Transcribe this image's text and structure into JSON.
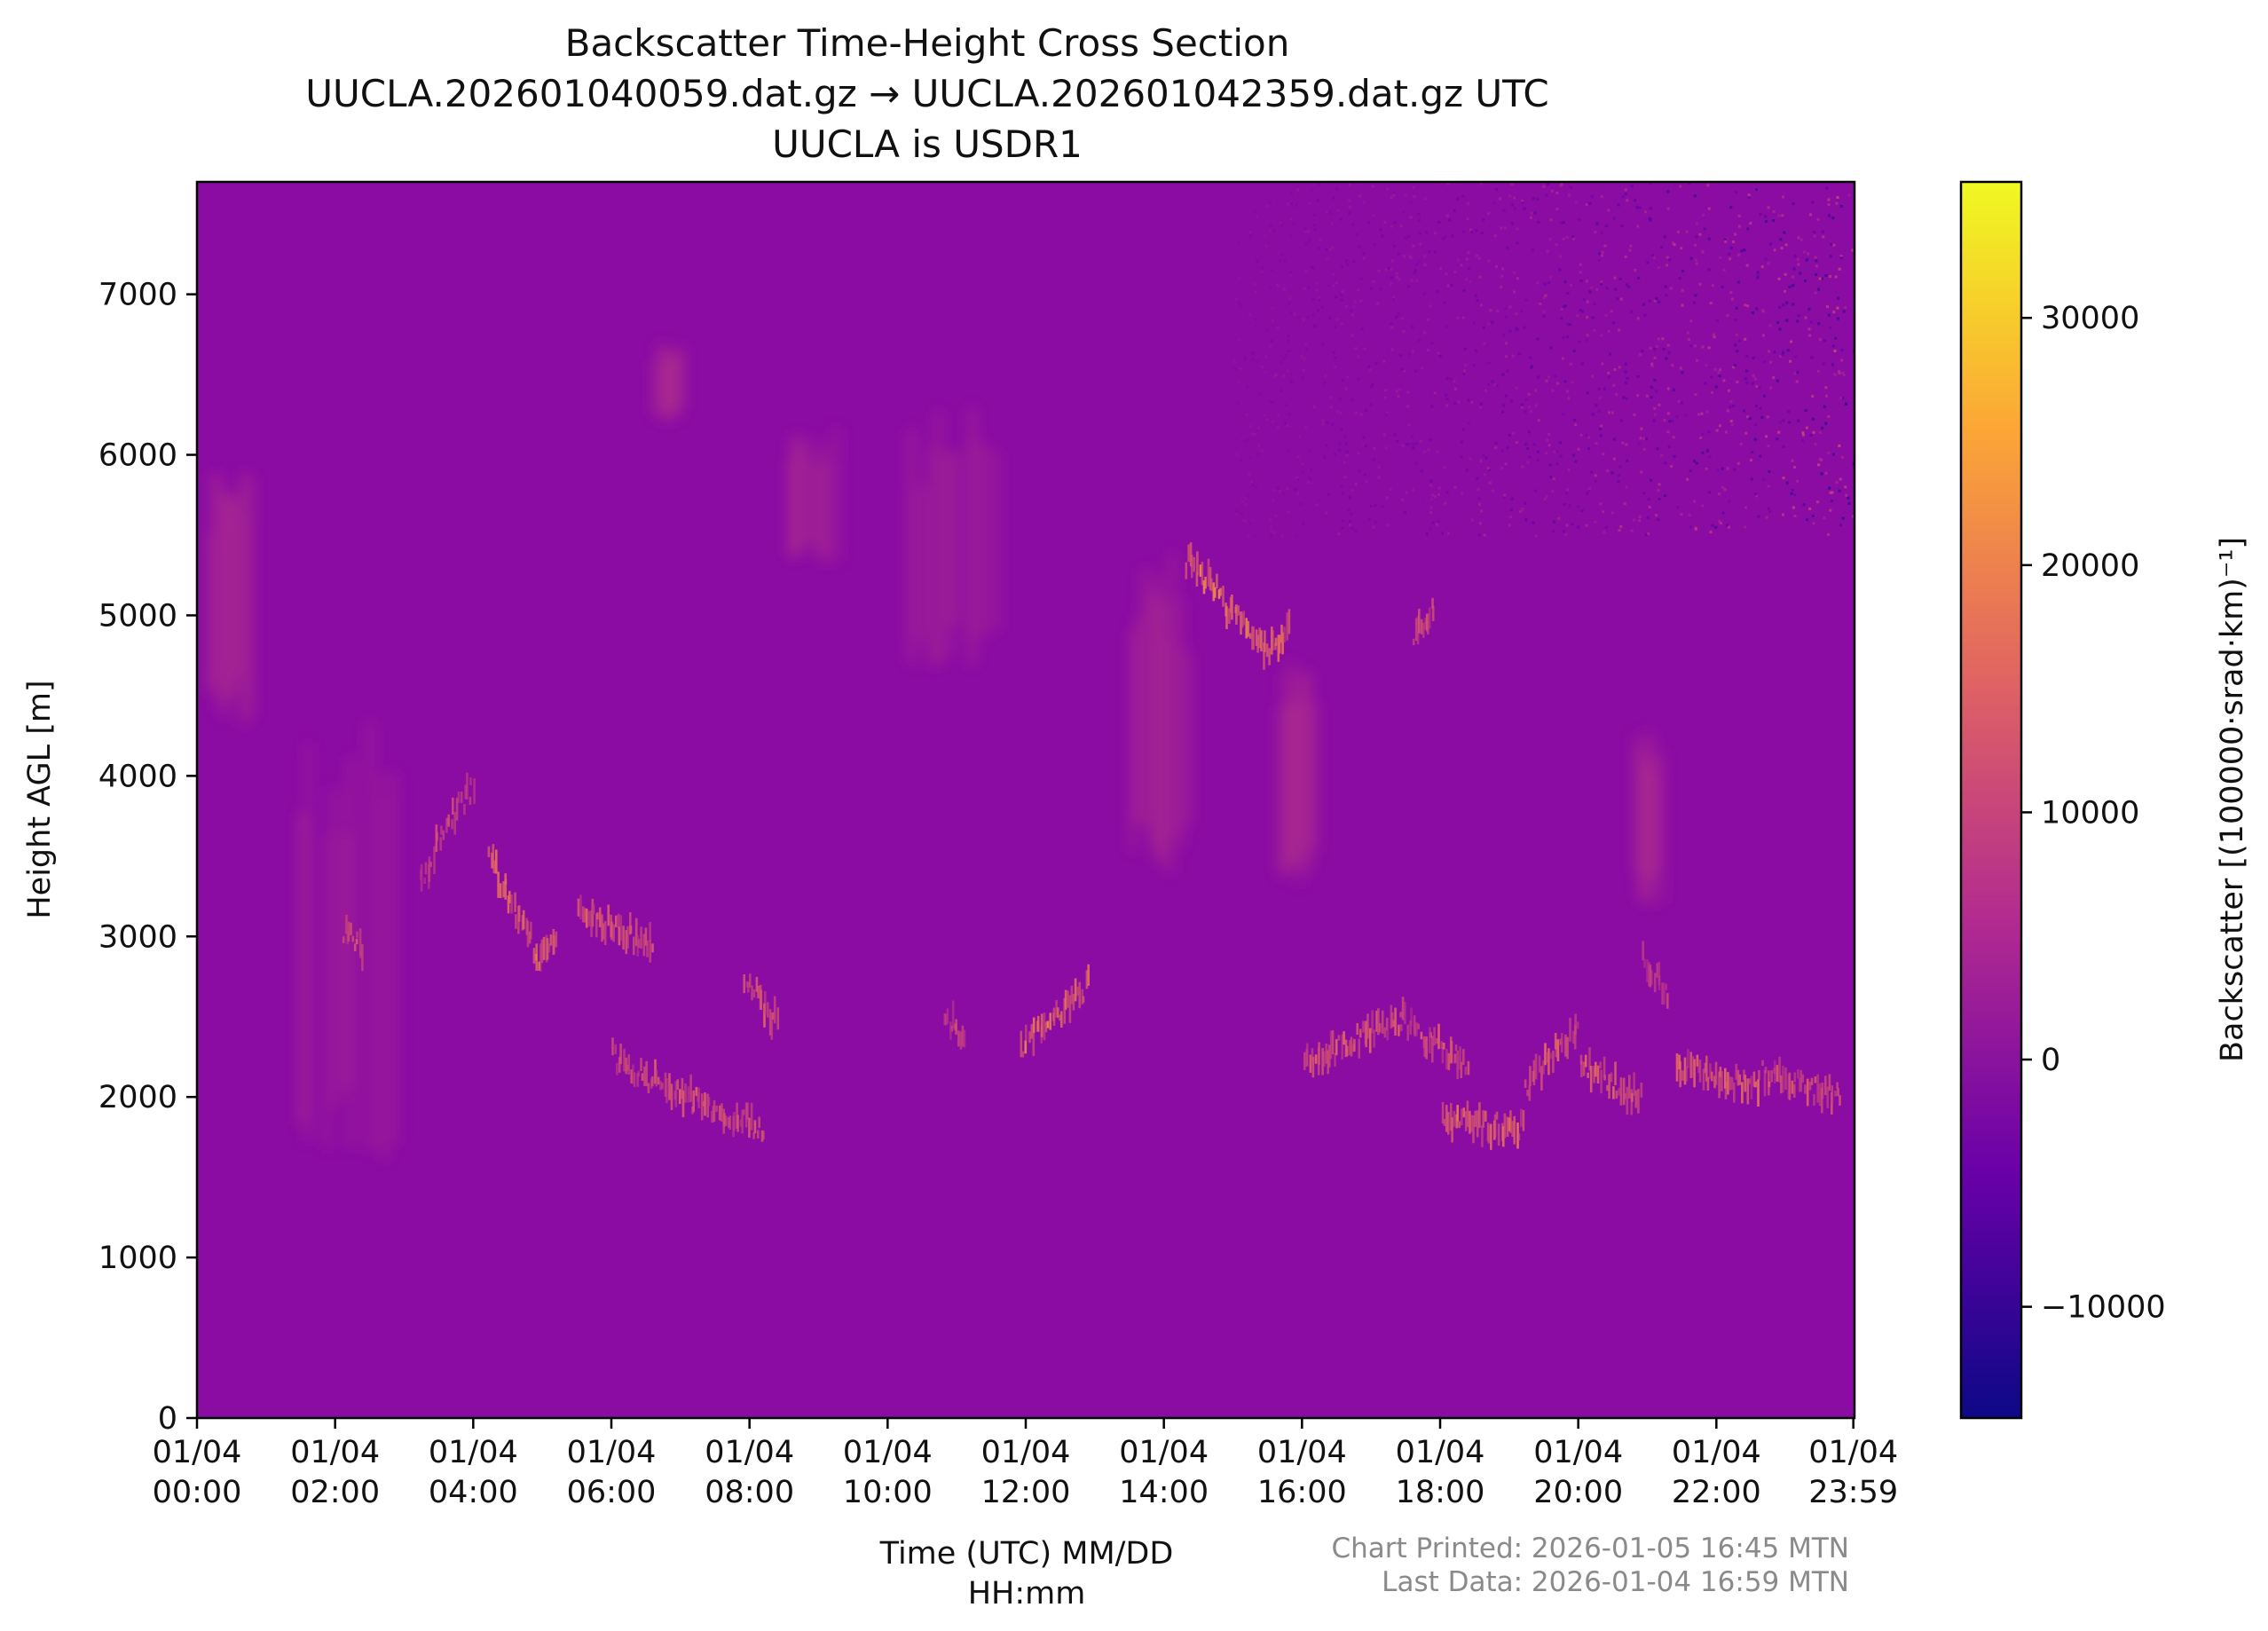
{
  "chart_data": {
    "type": "heatmap",
    "title": [
      "Backscatter Time-Height Cross Section",
      "UUCLA.202601040059.dat.gz → UUCLA.202601042359.dat.gz UTC",
      "UUCLA is USDR1"
    ],
    "xlabel": [
      "Time (UTC) MM/DD",
      "HH:mm"
    ],
    "ylabel": "Height AGL [m]",
    "colorbar_label": "Backscatter [(100000·srad·km)⁻¹]",
    "colormap": "plasma",
    "colormap_stops": [
      "#0d0887",
      "#6a00a8",
      "#b12a90",
      "#e16462",
      "#fca636",
      "#f0f921"
    ],
    "background_color": "#8a0ca3",
    "xlim_hours": [
      0,
      24
    ],
    "ylim": [
      0,
      7700
    ],
    "clim": [
      -14500,
      35500
    ],
    "x_tick_hours": [
      0,
      2,
      4,
      6,
      8,
      10,
      12,
      14,
      16,
      18,
      20,
      22,
      23.983
    ],
    "x_tick_labels": [
      [
        "01/04",
        "00:00"
      ],
      [
        "01/04",
        "02:00"
      ],
      [
        "01/04",
        "04:00"
      ],
      [
        "01/04",
        "06:00"
      ],
      [
        "01/04",
        "08:00"
      ],
      [
        "01/04",
        "10:00"
      ],
      [
        "01/04",
        "12:00"
      ],
      [
        "01/04",
        "14:00"
      ],
      [
        "01/04",
        "16:00"
      ],
      [
        "01/04",
        "18:00"
      ],
      [
        "01/04",
        "20:00"
      ],
      [
        "01/04",
        "22:00"
      ],
      [
        "01/04",
        "23:59"
      ]
    ],
    "y_ticks": [
      0,
      1000,
      2000,
      3000,
      4000,
      5000,
      6000,
      7000
    ],
    "y_tick_labels": [
      "0",
      "1000",
      "2000",
      "3000",
      "4000",
      "5000",
      "6000",
      "7000"
    ],
    "colorbar_ticks": [
      -10000,
      0,
      10000,
      20000,
      30000
    ],
    "colorbar_tick_labels": [
      "−10000",
      "0",
      "10000",
      "20000",
      "30000"
    ],
    "cloud_layers": [
      {
        "t_start": 2.1,
        "t_end": 2.4,
        "h_start": 3050,
        "h_end": 2900,
        "intensity": 14000
      },
      {
        "t_start": 3.2,
        "t_end": 3.6,
        "h_start": 3300,
        "h_end": 3700,
        "intensity": 12000
      },
      {
        "t_start": 3.6,
        "t_end": 4.0,
        "h_start": 3700,
        "h_end": 3950,
        "intensity": 13000
      },
      {
        "t_start": 4.2,
        "t_end": 4.9,
        "h_start": 3500,
        "h_end": 2900,
        "intensity": 17000
      },
      {
        "t_start": 4.9,
        "t_end": 5.2,
        "h_start": 2850,
        "h_end": 3050,
        "intensity": 19000
      },
      {
        "t_start": 5.5,
        "t_end": 6.6,
        "h_start": 3150,
        "h_end": 2950,
        "intensity": 15000
      },
      {
        "t_start": 6.0,
        "t_end": 6.8,
        "h_start": 2250,
        "h_end": 2050,
        "intensity": 16000
      },
      {
        "t_start": 6.8,
        "t_end": 8.2,
        "h_start": 2050,
        "h_end": 1800,
        "intensity": 15000
      },
      {
        "t_start": 7.9,
        "t_end": 8.4,
        "h_start": 2750,
        "h_end": 2450,
        "intensity": 14000
      },
      {
        "t_start": 10.8,
        "t_end": 11.1,
        "h_start": 2500,
        "h_end": 2400,
        "intensity": 12000
      },
      {
        "t_start": 11.9,
        "t_end": 12.9,
        "h_start": 2300,
        "h_end": 2700,
        "intensity": 18000
      },
      {
        "t_start": 14.3,
        "t_end": 14.8,
        "h_start": 5350,
        "h_end": 5150,
        "intensity": 20000
      },
      {
        "t_start": 14.8,
        "t_end": 15.5,
        "h_start": 5100,
        "h_end": 4750,
        "intensity": 20000
      },
      {
        "t_start": 15.5,
        "t_end": 15.8,
        "h_start": 4750,
        "h_end": 4900,
        "intensity": 17000
      },
      {
        "t_start": 17.6,
        "t_end": 17.9,
        "h_start": 4900,
        "h_end": 5050,
        "intensity": 13000
      },
      {
        "t_start": 16.0,
        "t_end": 17.5,
        "h_start": 2200,
        "h_end": 2500,
        "intensity": 15000
      },
      {
        "t_start": 17.5,
        "t_end": 18.4,
        "h_start": 2450,
        "h_end": 2200,
        "intensity": 14000
      },
      {
        "t_start": 18.0,
        "t_end": 19.2,
        "h_start": 1850,
        "h_end": 1800,
        "intensity": 17000
      },
      {
        "t_start": 19.2,
        "t_end": 20.0,
        "h_start": 2050,
        "h_end": 2450,
        "intensity": 15000
      },
      {
        "t_start": 20.0,
        "t_end": 20.9,
        "h_start": 2200,
        "h_end": 2000,
        "intensity": 16000
      },
      {
        "t_start": 20.9,
        "t_end": 21.3,
        "h_start": 2900,
        "h_end": 2650,
        "intensity": 11000
      },
      {
        "t_start": 21.4,
        "t_end": 22.6,
        "h_start": 2200,
        "h_end": 2050,
        "intensity": 16000
      },
      {
        "t_start": 22.6,
        "t_end": 23.8,
        "h_start": 2150,
        "h_end": 2000,
        "intensity": 14000
      }
    ],
    "virga_streaks": [
      {
        "t_start": 0.1,
        "t_end": 0.8,
        "h_top": 6000,
        "h_bottom": 4300
      },
      {
        "t_start": 1.4,
        "t_end": 3.0,
        "h_top": 4400,
        "h_bottom": 1500
      },
      {
        "t_start": 6.6,
        "t_end": 7.0,
        "h_top": 6700,
        "h_bottom": 6200
      },
      {
        "t_start": 8.5,
        "t_end": 9.3,
        "h_top": 6200,
        "h_bottom": 5300
      },
      {
        "t_start": 10.2,
        "t_end": 11.6,
        "h_top": 6300,
        "h_bottom": 4600
      },
      {
        "t_start": 13.5,
        "t_end": 14.3,
        "h_top": 5400,
        "h_bottom": 3300
      },
      {
        "t_start": 15.6,
        "t_end": 16.2,
        "h_top": 4800,
        "h_bottom": 3300
      },
      {
        "t_start": 20.8,
        "t_end": 21.2,
        "h_top": 4300,
        "h_bottom": 3200
      }
    ],
    "noise_region": {
      "t_start": 15.0,
      "t_end": 24.0,
      "h_start": 5500,
      "h_end": 7700
    }
  },
  "footer": {
    "chart_printed": "Chart Printed: 2026-01-05 16:45 MTN",
    "last_data": "Last Data: 2026-01-04 16:59 MTN"
  }
}
